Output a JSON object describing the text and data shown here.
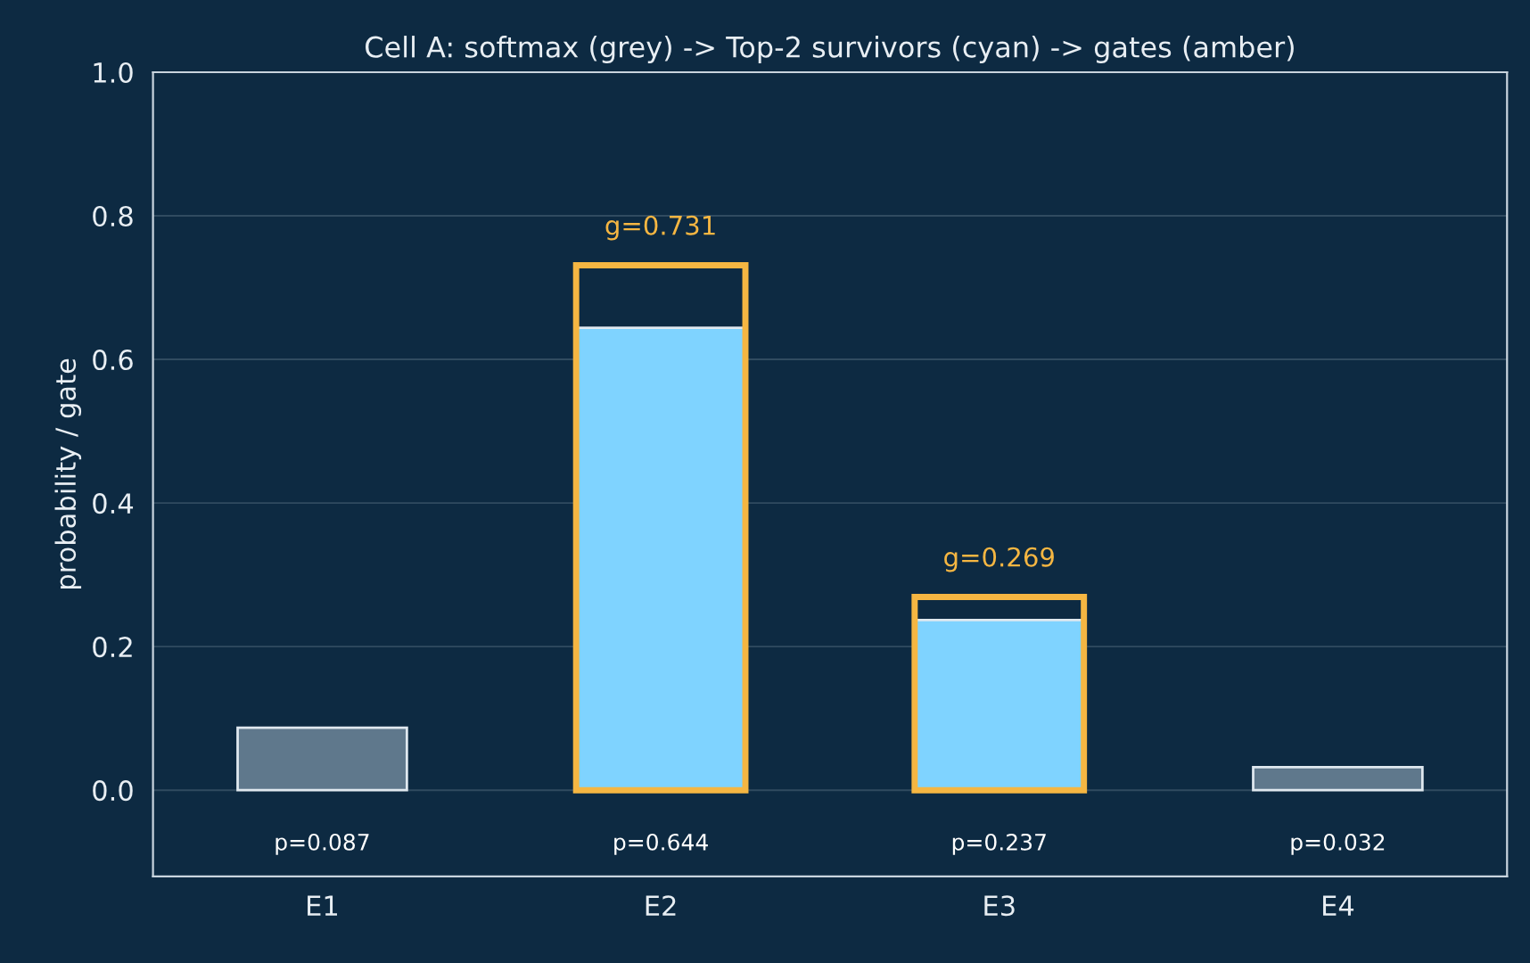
{
  "chart_data": {
    "type": "bar",
    "title": "Cell A: softmax (grey) -> Top-2 survivors (cyan) -> gates (amber)",
    "ylabel": "probability / gate",
    "categories": [
      "E1",
      "E2",
      "E3",
      "E4"
    ],
    "series": [
      {
        "colors": [
          "#5f788c",
          "#7fd3ff",
          "#7fd3ff",
          "#5f788c"
        ],
        "values": [
          0.087,
          0.644,
          0.237,
          0.032
        ],
        "value_labels": [
          "p=0.087",
          "p=0.644",
          "p=0.237",
          "p=0.032"
        ]
      },
      {
        "color": "#f5b642",
        "values": [
          null,
          0.731,
          0.269,
          null
        ],
        "value_labels": [
          null,
          "g=0.731",
          "g=0.269",
          null
        ]
      }
    ],
    "ylim": [
      -0.12,
      1.0
    ],
    "yticks": [
      {
        "value": 0.0,
        "label": "0.0"
      },
      {
        "value": 0.2,
        "label": "0.2"
      },
      {
        "value": 0.4,
        "label": "0.4"
      },
      {
        "value": 0.6,
        "label": "0.6"
      },
      {
        "value": 0.8,
        "label": "0.8"
      },
      {
        "value": 1.0,
        "label": "1.0"
      }
    ],
    "grid": "y",
    "legend": false
  }
}
